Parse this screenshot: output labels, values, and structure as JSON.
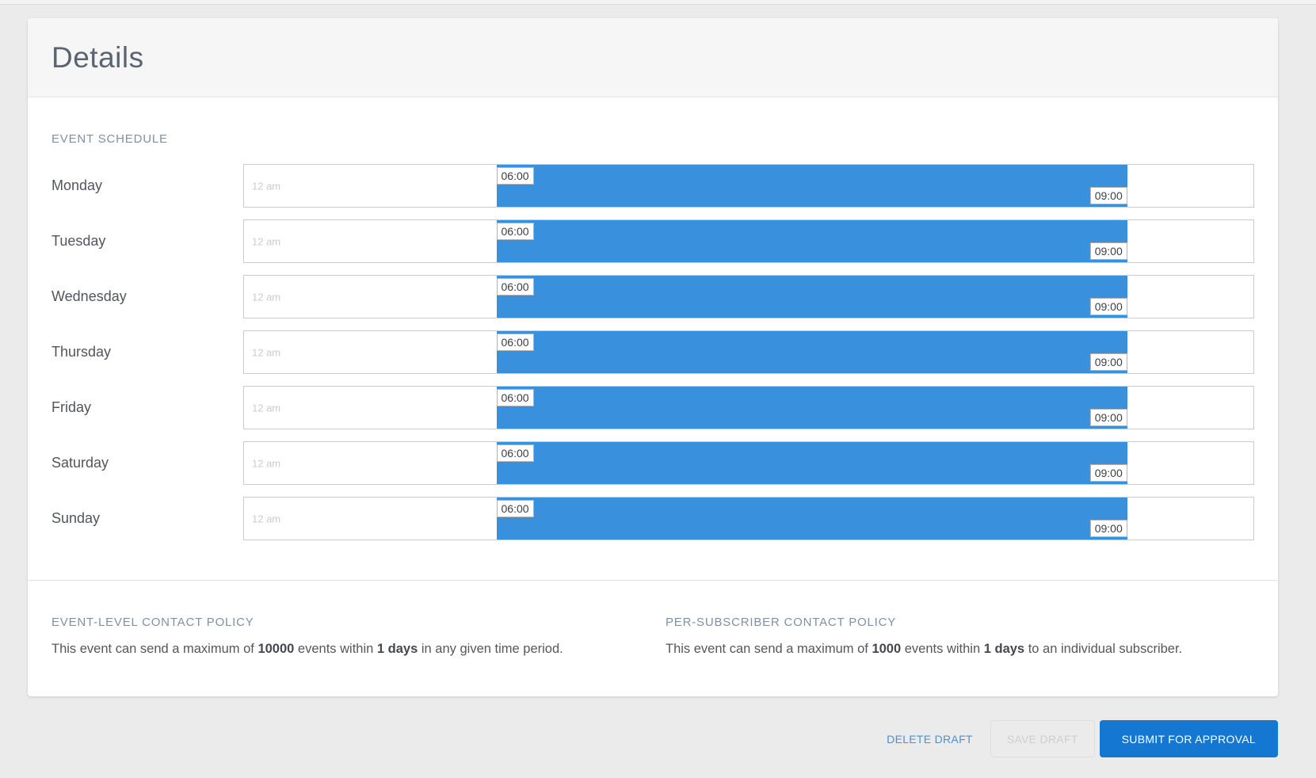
{
  "header": {
    "title": "Details"
  },
  "schedule": {
    "heading": "EVENT SCHEDULE",
    "start_axis_label": "12 am",
    "bar": {
      "start_pct": 25,
      "end_pct": 87.5,
      "start_time": "06:00",
      "end_time": "09:00"
    },
    "days": [
      {
        "label": "Monday",
        "start_time": "06:00",
        "end_time": "09:00"
      },
      {
        "label": "Tuesday",
        "start_time": "06:00",
        "end_time": "09:00"
      },
      {
        "label": "Wednesday",
        "start_time": "06:00",
        "end_time": "09:00"
      },
      {
        "label": "Thursday",
        "start_time": "06:00",
        "end_time": "09:00"
      },
      {
        "label": "Friday",
        "start_time": "06:00",
        "end_time": "09:00"
      },
      {
        "label": "Saturday",
        "start_time": "06:00",
        "end_time": "09:00"
      },
      {
        "label": "Sunday",
        "start_time": "06:00",
        "end_time": "09:00"
      }
    ]
  },
  "policies": {
    "event_level": {
      "heading": "EVENT-LEVEL CONTACT POLICY",
      "prefix": "This event can send a maximum of ",
      "max_events": "10000",
      "middle": " events within ",
      "days": "1 days",
      "suffix": " in any given time period."
    },
    "per_subscriber": {
      "heading": "PER-SUBSCRIBER CONTACT POLICY",
      "prefix": "This event can send a maximum of ",
      "max_events": "1000",
      "middle": " events within ",
      "days": "1 days",
      "suffix": " to an individual subscriber."
    }
  },
  "footer": {
    "delete_button": "DELETE DRAFT",
    "save_button": "SAVE DRAFT",
    "submit_button": "SUBMIT FOR APPROVAL"
  },
  "colors": {
    "bar_blue": "#3990dd",
    "primary_blue": "#1478d2",
    "link_blue": "#4a90d9"
  }
}
